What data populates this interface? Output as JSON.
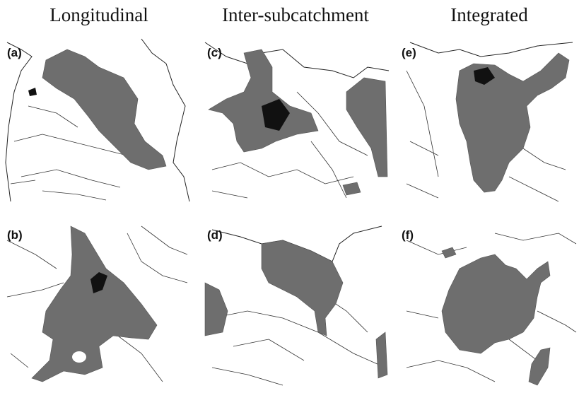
{
  "columns": [
    {
      "title": "Longitudinal",
      "panels": [
        "(a)",
        "(b)"
      ]
    },
    {
      "title": "Inter-subcatchment",
      "panels": [
        "(c)",
        "(d)"
      ]
    },
    {
      "title": "Integrated",
      "panels": [
        "(e)",
        "(f)"
      ]
    }
  ]
}
